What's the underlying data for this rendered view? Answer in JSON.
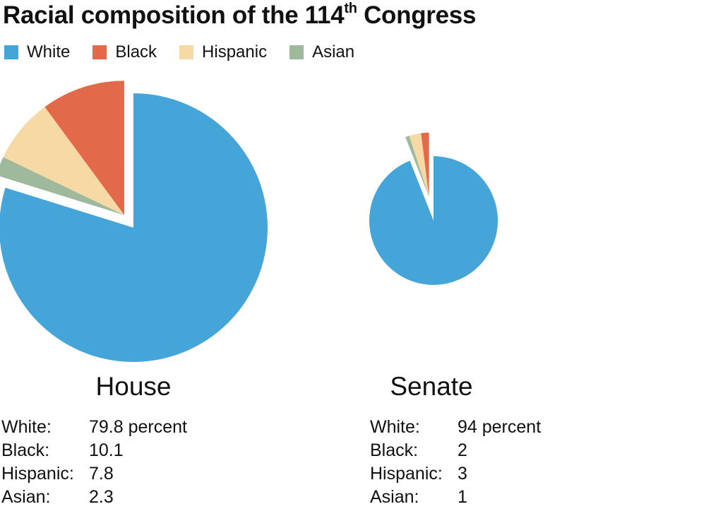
{
  "title": {
    "text": "Racial composition of the 114",
    "sup": "th",
    "suffix": " Congress"
  },
  "legend": [
    {
      "label": "White",
      "color": "#45a4d8"
    },
    {
      "label": "Black",
      "color": "#e26a4b"
    },
    {
      "label": "Hispanic",
      "color": "#f6d9a4"
    },
    {
      "label": "Asian",
      "color": "#9fb99c"
    }
  ],
  "chart_data": [
    {
      "type": "pie",
      "title": "House",
      "categories": [
        "White",
        "Black",
        "Hispanic",
        "Asian"
      ],
      "values": [
        79.8,
        10.1,
        7.8,
        2.3
      ],
      "exploded": [
        "Black",
        "Hispanic",
        "Asian"
      ],
      "colors": [
        "#45a4d8",
        "#e26a4b",
        "#f6d9a4",
        "#9fb99c"
      ]
    },
    {
      "type": "pie",
      "title": "Senate",
      "categories": [
        "White",
        "Black",
        "Hispanic",
        "Asian"
      ],
      "values": [
        94,
        2,
        3,
        1
      ],
      "exploded": [
        "Black",
        "Hispanic",
        "Asian"
      ],
      "colors": [
        "#45a4d8",
        "#e26a4b",
        "#f6d9a4",
        "#9fb99c"
      ]
    }
  ],
  "house": {
    "label": "House",
    "rows": [
      {
        "name": "White:",
        "value": "79.8 percent"
      },
      {
        "name": "Black:",
        "value": "10.1"
      },
      {
        "name": "Hispanic:",
        "value": "7.8"
      },
      {
        "name": "Asian:",
        "value": "2.3"
      }
    ]
  },
  "senate": {
    "label": "Senate",
    "rows": [
      {
        "name": "White:",
        "value": "94 percent"
      },
      {
        "name": "Black:",
        "value": "2"
      },
      {
        "name": "Hispanic:",
        "value": "3"
      },
      {
        "name": "Asian:",
        "value": "1"
      }
    ]
  }
}
